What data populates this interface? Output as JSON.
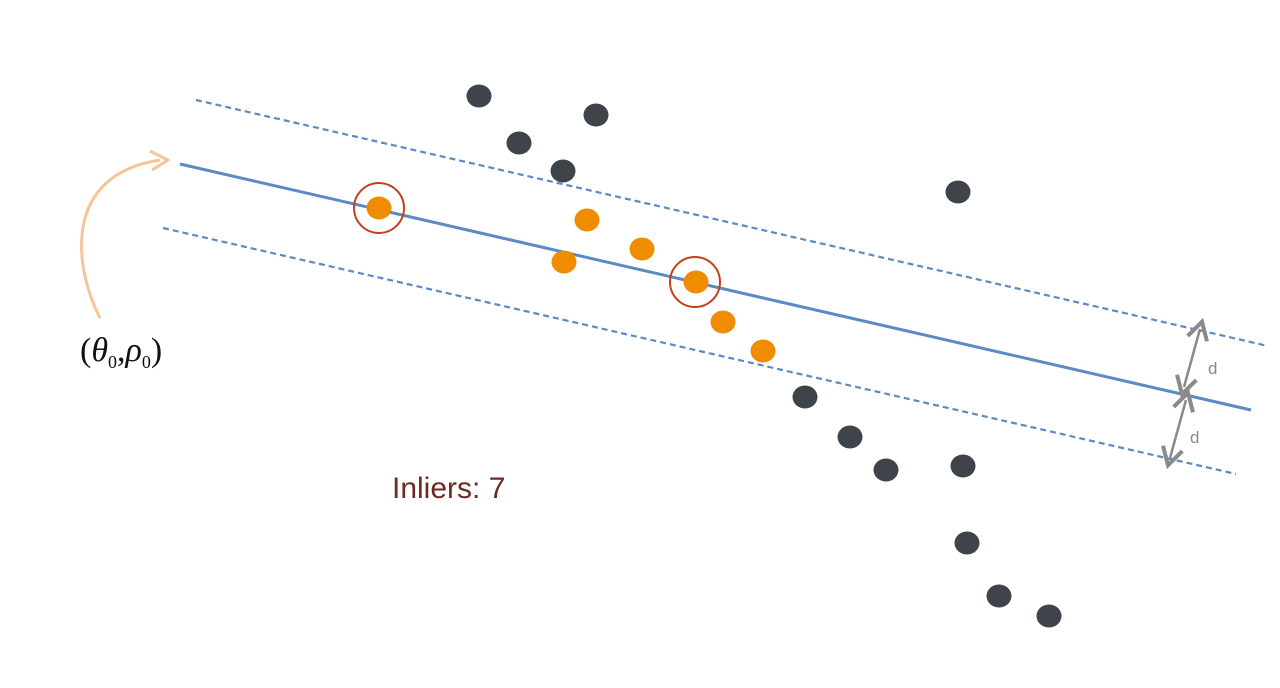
{
  "colors": {
    "line": "#5b8ac4",
    "band": "#5b8ac4",
    "outlier": "#3e4449",
    "inlier": "#f08c00",
    "sample_ring": "#c0411a",
    "arrow_orange": "#f6c49a",
    "arrow_gray": "#8a8a8a",
    "inliers_text": "#6b2a22"
  },
  "labels": {
    "param_theta": "θ",
    "param_rho": "ρ",
    "param_sub": "0",
    "inliers": "Inliers: 7",
    "distance_upper": "d",
    "distance_lower": "d"
  }
}
